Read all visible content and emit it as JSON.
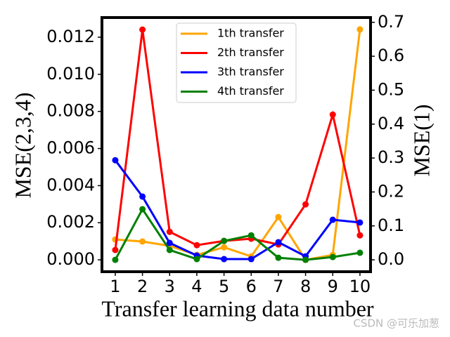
{
  "chart_data": {
    "type": "line",
    "xlabel": "Transfer learning data number",
    "ylabel": "MSE(2,3,4)",
    "y2label": "MSE(1)",
    "x": [
      1,
      2,
      3,
      4,
      5,
      6,
      7,
      8,
      9,
      10
    ],
    "xlim": [
      0.51,
      10.39
    ],
    "xticks": [
      1,
      2,
      3,
      4,
      5,
      6,
      7,
      8,
      9,
      10
    ],
    "ylim": [
      -0.00064,
      0.01306
    ],
    "yticks": [
      {
        "value": 0,
        "label": "0.000"
      },
      {
        "value": 0.002,
        "label": "0.002"
      },
      {
        "value": 0.004,
        "label": "0.004"
      },
      {
        "value": 0.006,
        "label": "0.006"
      },
      {
        "value": 0.008,
        "label": "0.008"
      },
      {
        "value": 0.01,
        "label": "0.010"
      },
      {
        "value": 0.012,
        "label": "0.012"
      }
    ],
    "y2lim": [
      -0.035,
      0.714
    ],
    "y2ticks": [
      {
        "value": 0,
        "label": "0.0"
      },
      0.1,
      0.2,
      0.3,
      0.4,
      0.5,
      0.6,
      0.7
    ],
    "legend": "upper center",
    "series": [
      {
        "name": "1th transfer",
        "color": "#ffa500",
        "axis": "y2",
        "values": [
          0.06,
          0.054,
          0.041,
          0.0145,
          0.037,
          0.01,
          0.126,
          0.0,
          0.0145,
          0.679
        ]
      },
      {
        "name": "2th transfer",
        "color": "#ff0000",
        "values": [
          0.00053,
          0.01241,
          0.00151,
          0.00079,
          0.00102,
          0.00114,
          0.00083,
          0.00299,
          0.00783,
          0.00132
        ]
      },
      {
        "name": "3th transfer",
        "color": "#0000ff",
        "values": [
          0.00537,
          0.00341,
          0.00091,
          0.00023,
          4e-05,
          4e-05,
          0.00095,
          0.00019,
          0.00216,
          0.00201
        ]
      },
      {
        "name": "4th transfer",
        "color": "#008000",
        "values": [
          0,
          0.00273,
          0.00053,
          4e-05,
          0.00102,
          0.00132,
          0.00011,
          0,
          0.00015,
          0.00038
        ]
      }
    ]
  },
  "watermark": "CSDN @可乐加葱"
}
